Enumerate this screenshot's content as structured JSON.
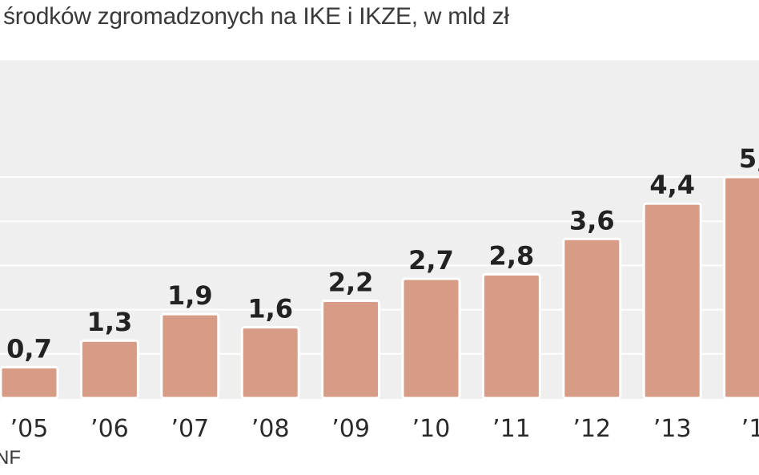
{
  "chart_data": {
    "type": "bar",
    "title": "środków zgromadzonych na IKE i IKZE, w mld zł",
    "categories": [
      "’05",
      "’06",
      "’07",
      "’08",
      "’09",
      "’10",
      "’11",
      "’12",
      "’13",
      "’1"
    ],
    "values": [
      0.7,
      1.3,
      1.9,
      1.6,
      2.2,
      2.7,
      2.8,
      3.6,
      4.4,
      5.0
    ],
    "value_labels": [
      "0,7",
      "1,3",
      "1,9",
      "1,6",
      "2,2",
      "2,7",
      "2,8",
      "3,6",
      "4,4",
      "5,"
    ],
    "ylim": [
      0,
      6
    ],
    "grid": true,
    "bar_color": "#d79c86",
    "bar_border_color": "#ffffff",
    "background_color": "#efefef",
    "grid_color": "#ffffff",
    "source": "NF"
  }
}
